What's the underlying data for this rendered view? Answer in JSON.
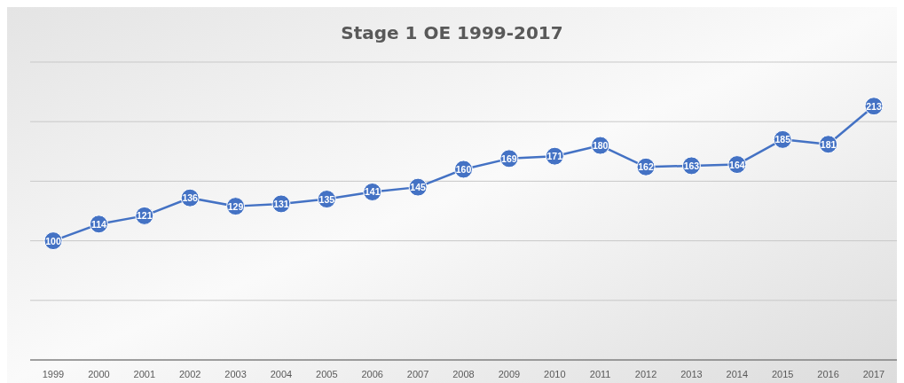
{
  "chart_data": {
    "type": "line",
    "title": "Stage 1 OE 1999-2017",
    "categories": [
      "1999",
      "2000",
      "2001",
      "2002",
      "2003",
      "2004",
      "2005",
      "2006",
      "2007",
      "2008",
      "2009",
      "2010",
      "2011",
      "2012",
      "2013",
      "2014",
      "2015",
      "2016",
      "2017"
    ],
    "series": [
      {
        "color": "#4472c4",
        "values": [
          100,
          114,
          121,
          136,
          129,
          131,
          135,
          141,
          145,
          160,
          169,
          171,
          180,
          162,
          163,
          164,
          185,
          181,
          213
        ]
      }
    ],
    "ylim": [
      0,
      250
    ],
    "yticks": [
      {
        "value": 0,
        "label": null
      },
      {
        "value": 50,
        "label": null
      },
      {
        "value": 100,
        "label": null
      },
      {
        "value": 150,
        "label": null
      },
      {
        "value": 200,
        "label": null
      },
      {
        "value": 250,
        "label": null
      }
    ],
    "tick_labels": "x",
    "grid": "y",
    "marker": "circle",
    "data_labels": true
  }
}
